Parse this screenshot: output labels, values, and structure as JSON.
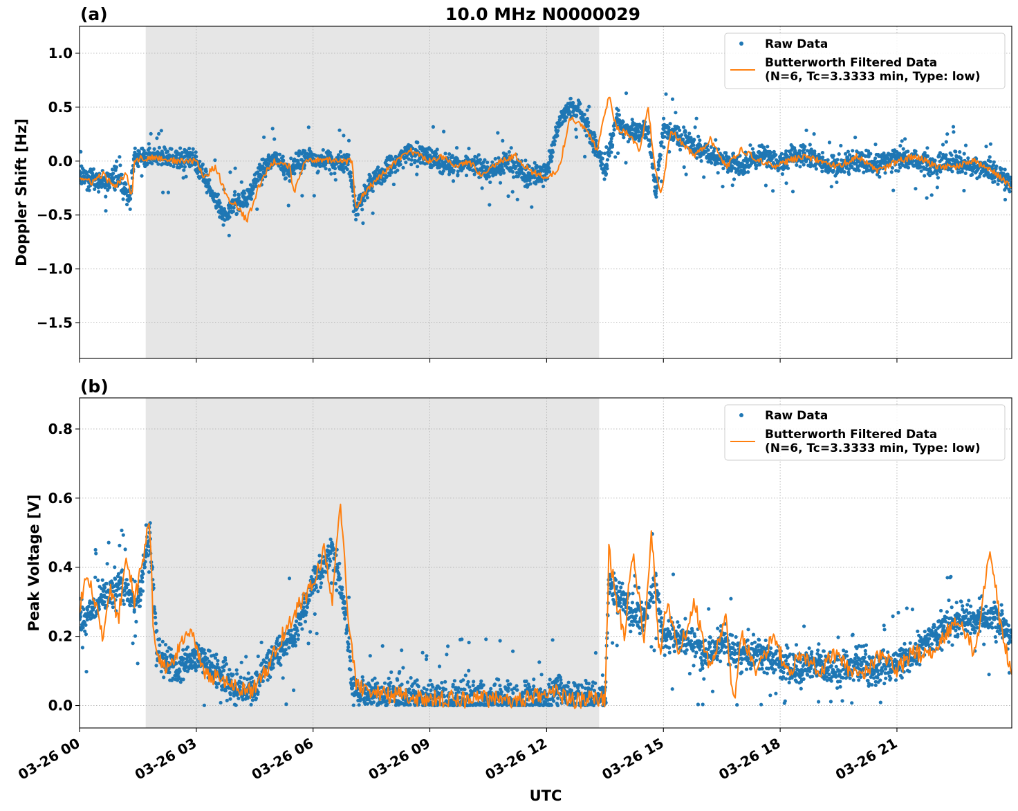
{
  "figure": {
    "title": "10.0 MHz N0000029",
    "xlabel": "UTC",
    "x_tick_labels": [
      "03-26 00",
      "03-26 03",
      "03-26 06",
      "03-26 09",
      "03-26 12",
      "03-26 15",
      "03-26 18",
      "03-26 21"
    ]
  },
  "colors": {
    "raw": "#1f77b4",
    "filtered": "#ff7f0e",
    "shade": "#e6e6e6"
  },
  "chart_data": [
    {
      "type": "scatter",
      "panel": "(a)",
      "title": "10.0 MHz N0000029",
      "xlabel": "",
      "ylabel": "Doppler Shift [Hz]",
      "x_unit": "hours UTC since 03-26 00",
      "xlim": [
        0,
        23.95
      ],
      "ylim": [
        -1.83,
        1.25
      ],
      "yticks": [
        -1.5,
        -1.0,
        -0.5,
        0.0,
        0.5,
        1.0
      ],
      "ytick_labels": [
        "−1.5",
        "−1.0",
        "−0.5",
        "0.0",
        "0.5",
        "1.0"
      ],
      "grid": true,
      "shaded_interval": [
        1.7,
        13.35
      ],
      "legend": {
        "position": "top-right",
        "entries": [
          "Raw Data",
          "Butterworth Filtered Data",
          "(N=6, Tc=3.3333 min, Type: low)"
        ]
      },
      "series": [
        {
          "name": "Raw Data",
          "style": "points",
          "x": [
            0,
            0.5,
            1,
            1.3,
            1.4,
            2,
            2.5,
            3,
            3.3,
            3.7,
            4,
            4.3,
            4.7,
            5,
            5.4,
            5.6,
            6,
            6.5,
            6.9,
            7.1,
            7.5,
            8,
            8.5,
            9,
            9.5,
            10,
            10.5,
            11,
            11.5,
            12,
            12.4,
            12.8,
            13.2,
            13.5,
            13.8,
            14.2,
            14.6,
            14.8,
            15,
            15.5,
            16,
            16.5,
            17,
            17.5,
            18,
            18.5,
            19,
            19.5,
            20,
            20.5,
            21,
            21.5,
            22,
            22.5,
            23,
            23.5,
            23.95
          ],
          "y": [
            -0.1,
            -0.2,
            -0.15,
            -0.35,
            0.02,
            0.05,
            0.02,
            0.0,
            -0.2,
            -0.5,
            -0.4,
            -0.35,
            -0.05,
            0.02,
            -0.1,
            0.0,
            0.02,
            0.0,
            0.0,
            -0.45,
            -0.2,
            -0.05,
            0.1,
            0.05,
            -0.05,
            0.0,
            -0.1,
            0.0,
            -0.15,
            -0.1,
            0.45,
            0.5,
            0.2,
            -0.1,
            0.4,
            0.25,
            0.3,
            -0.3,
            0.3,
            0.2,
            0.1,
            0.0,
            -0.05,
            0.05,
            0.0,
            0.05,
            0.0,
            -0.05,
            0.0,
            -0.05,
            0.05,
            0.0,
            -0.05,
            0.0,
            -0.05,
            -0.1,
            -0.2
          ]
        },
        {
          "name": "Butterworth Filtered Data",
          "style": "line",
          "x": [
            0,
            0.3,
            0.6,
            0.9,
            1.2,
            1.35,
            1.4,
            2,
            2.5,
            3,
            3.2,
            3.5,
            3.8,
            4,
            4.3,
            4.7,
            5,
            5.4,
            5.5,
            5.8,
            6.2,
            6.6,
            7,
            7.1,
            7.3,
            7.7,
            8,
            8.5,
            9,
            9.3,
            9.6,
            10,
            10.3,
            10.8,
            11.2,
            11.6,
            12,
            12.3,
            12.6,
            13,
            13.3,
            13.6,
            13.8,
            14.1,
            14.4,
            14.6,
            14.8,
            14.95,
            15.2,
            15.5,
            15.8,
            16.2,
            16.6,
            17,
            17.4,
            17.8,
            18.2,
            18.6,
            19,
            19.5,
            20,
            20.5,
            21,
            21.5,
            22,
            22.5,
            23,
            23.5,
            23.95
          ],
          "y": [
            -0.15,
            -0.2,
            -0.12,
            -0.25,
            -0.1,
            -0.35,
            0.02,
            0.03,
            0.0,
            0.0,
            -0.15,
            -0.05,
            -0.35,
            -0.4,
            -0.55,
            -0.15,
            0.0,
            -0.05,
            -0.3,
            0.0,
            0.02,
            0.0,
            0.0,
            -0.45,
            -0.3,
            -0.15,
            -0.05,
            0.1,
            0.0,
            0.05,
            -0.05,
            0.0,
            -0.12,
            0.0,
            0.05,
            -0.1,
            -0.15,
            -0.1,
            0.4,
            0.3,
            0.1,
            0.6,
            0.3,
            0.25,
            0.1,
            0.5,
            -0.1,
            -0.3,
            0.3,
            0.15,
            0.05,
            0.2,
            -0.05,
            0.1,
            0.02,
            -0.05,
            0.0,
            0.05,
            0.0,
            -0.05,
            0.05,
            -0.1,
            0.0,
            0.05,
            -0.05,
            -0.05,
            0.0,
            -0.1,
            -0.25
          ]
        }
      ]
    },
    {
      "type": "scatter",
      "panel": "(b)",
      "title": "",
      "xlabel": "UTC",
      "ylabel": "Peak Voltage [V]",
      "x_unit": "hours UTC since 03-26 00",
      "xlim": [
        0,
        23.95
      ],
      "ylim": [
        -0.065,
        0.89
      ],
      "yticks": [
        0.0,
        0.2,
        0.4,
        0.6,
        0.8
      ],
      "ytick_labels": [
        "0.0",
        "0.2",
        "0.4",
        "0.6",
        "0.8"
      ],
      "grid": true,
      "shaded_interval": [
        1.7,
        13.35
      ],
      "legend": {
        "position": "top-right",
        "entries": [
          "Raw Data",
          "Butterworth Filtered Data",
          "(N=6, Tc=3.3333 min, Type: low)"
        ]
      },
      "series": [
        {
          "name": "Raw Data",
          "style": "points",
          "x": [
            0,
            0.5,
            1,
            1.5,
            1.8,
            2,
            2.5,
            3,
            3.5,
            4,
            4.5,
            5,
            5.5,
            6,
            6.5,
            6.8,
            7,
            7.5,
            8,
            9,
            10,
            11,
            12,
            12.3,
            13,
            13.5,
            13.6,
            14,
            14.5,
            14.8,
            15,
            15.5,
            16,
            16.5,
            17,
            17.5,
            18,
            18.5,
            19,
            19.5,
            20,
            20.5,
            21,
            21.5,
            22,
            22.5,
            23,
            23.5,
            23.95
          ],
          "y": [
            0.25,
            0.3,
            0.35,
            0.3,
            0.5,
            0.15,
            0.1,
            0.15,
            0.1,
            0.05,
            0.05,
            0.15,
            0.2,
            0.35,
            0.45,
            0.3,
            0.05,
            0.03,
            0.03,
            0.02,
            0.02,
            0.02,
            0.02,
            0.05,
            0.02,
            0.02,
            0.35,
            0.3,
            0.25,
            0.35,
            0.2,
            0.2,
            0.15,
            0.18,
            0.15,
            0.15,
            0.12,
            0.1,
            0.12,
            0.1,
            0.12,
            0.1,
            0.12,
            0.15,
            0.2,
            0.25,
            0.25,
            0.25,
            0.2
          ]
        },
        {
          "name": "Butterworth Filtered Data",
          "style": "line",
          "x": [
            0,
            0.2,
            0.4,
            0.6,
            0.8,
            1,
            1.2,
            1.4,
            1.6,
            1.8,
            1.9,
            2,
            2.3,
            2.6,
            2.9,
            3.2,
            3.5,
            3.8,
            4,
            4.4,
            4.8,
            5.2,
            5.6,
            6,
            6.3,
            6.5,
            6.7,
            6.9,
            7.1,
            7.4,
            7.8,
            8.2,
            8.6,
            9,
            9.5,
            10,
            10.5,
            11,
            11.5,
            12,
            12.2,
            12.5,
            12.8,
            13.2,
            13.45,
            13.5,
            13.6,
            13.8,
            14,
            14.2,
            14.5,
            14.7,
            14.9,
            15.1,
            15.4,
            15.8,
            16.2,
            16.6,
            16.8,
            17,
            17.4,
            17.8,
            18.2,
            18.6,
            19,
            19.4,
            19.8,
            20.2,
            20.6,
            21,
            21.4,
            21.8,
            22.2,
            22.6,
            23,
            23.4,
            23.7,
            23.95
          ],
          "y": [
            0.28,
            0.38,
            0.3,
            0.2,
            0.33,
            0.25,
            0.45,
            0.3,
            0.4,
            0.55,
            0.2,
            0.15,
            0.1,
            0.18,
            0.2,
            0.1,
            0.08,
            0.06,
            0.05,
            0.04,
            0.1,
            0.2,
            0.28,
            0.35,
            0.45,
            0.3,
            0.6,
            0.25,
            0.06,
            0.04,
            0.03,
            0.03,
            0.02,
            0.02,
            0.02,
            0.015,
            0.02,
            0.015,
            0.02,
            0.03,
            0.05,
            0.02,
            0.015,
            0.02,
            0.02,
            -0.025,
            0.45,
            0.3,
            0.2,
            0.45,
            0.2,
            0.5,
            0.15,
            0.3,
            0.15,
            0.3,
            0.1,
            0.25,
            0.0,
            0.2,
            0.1,
            0.2,
            0.1,
            0.15,
            0.1,
            0.15,
            0.1,
            0.1,
            0.15,
            0.1,
            0.15,
            0.15,
            0.2,
            0.25,
            0.15,
            0.45,
            0.2,
            0.1
          ]
        }
      ]
    }
  ]
}
